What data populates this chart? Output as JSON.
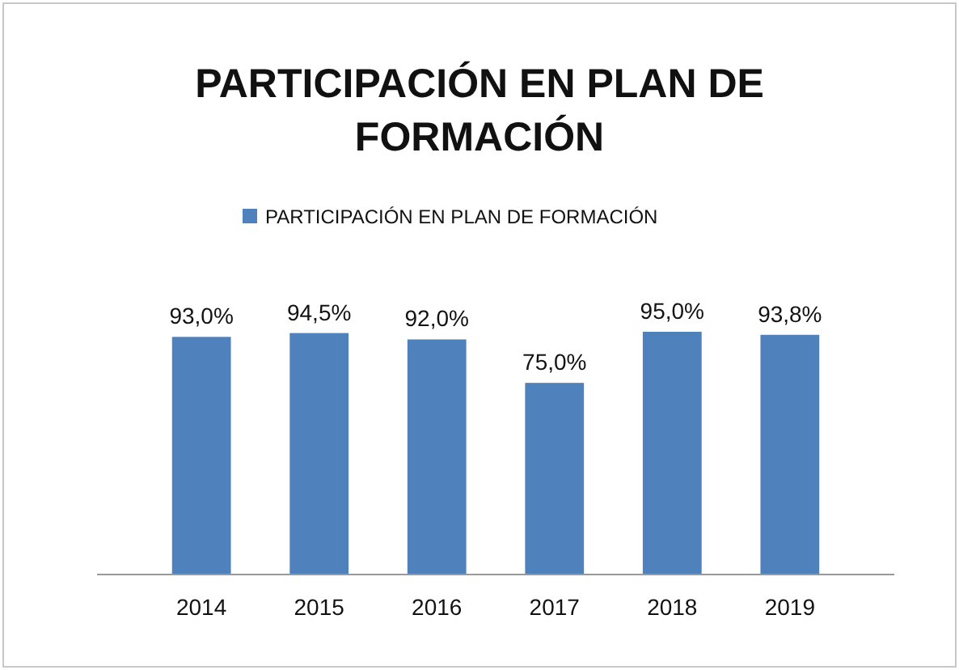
{
  "chart_data": {
    "type": "bar",
    "title": "PARTICIPACIÓN EN PLAN DE FORMACIÓN",
    "categories": [
      "2014",
      "2015",
      "2016",
      "2017",
      "2018",
      "2019"
    ],
    "series": [
      {
        "name": "PARTICIPACIÓN EN PLAN DE FORMACIÓN",
        "color": "#4f81bd",
        "values": [
          93.0,
          94.5,
          92.0,
          75.0,
          95.0,
          93.8
        ],
        "value_labels": [
          "93,0%",
          "94,5%",
          "92,0%",
          "75,0%",
          "95,0%",
          "93,8%"
        ]
      }
    ],
    "legend": "top",
    "grid": false
  }
}
